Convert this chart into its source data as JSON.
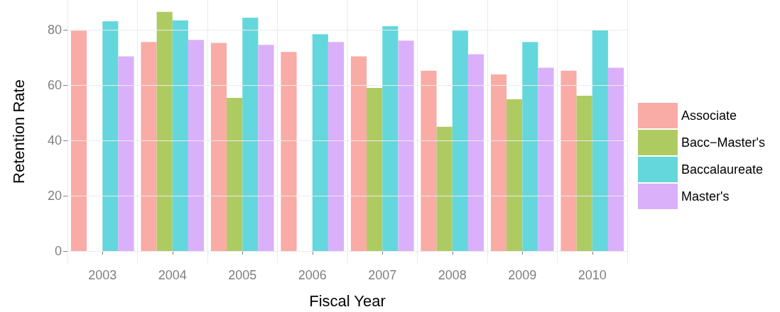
{
  "chart_data": {
    "type": "bar",
    "xlabel": "Fiscal Year",
    "ylabel": "Retention Rate",
    "categories": [
      "2003",
      "2004",
      "2005",
      "2006",
      "2007",
      "2008",
      "2009",
      "2010"
    ],
    "series": [
      {
        "name": "Associate",
        "color": "#f9aba5",
        "values": [
          79.7,
          75.6,
          75.3,
          72.0,
          70.4,
          65.2,
          63.9,
          65.2
        ]
      },
      {
        "name": "Bacc−Master's",
        "color": "#aecb62",
        "values": [
          null,
          86.5,
          55.4,
          null,
          59.0,
          45.0,
          54.9,
          56.2
        ]
      },
      {
        "name": "Baccalaureate",
        "color": "#64d7dc",
        "values": [
          83.1,
          83.4,
          84.4,
          78.4,
          81.3,
          79.7,
          75.6,
          80.0
        ]
      },
      {
        "name": "Master's",
        "color": "#dab0fb",
        "values": [
          70.4,
          76.4,
          74.6,
          75.6,
          76.1,
          71.2,
          66.3,
          66.3
        ]
      }
    ],
    "ylim": [
      -4.3,
      90.8
    ],
    "yticks": [
      0,
      20,
      40,
      60,
      80
    ],
    "grid": true,
    "legend": "right"
  }
}
